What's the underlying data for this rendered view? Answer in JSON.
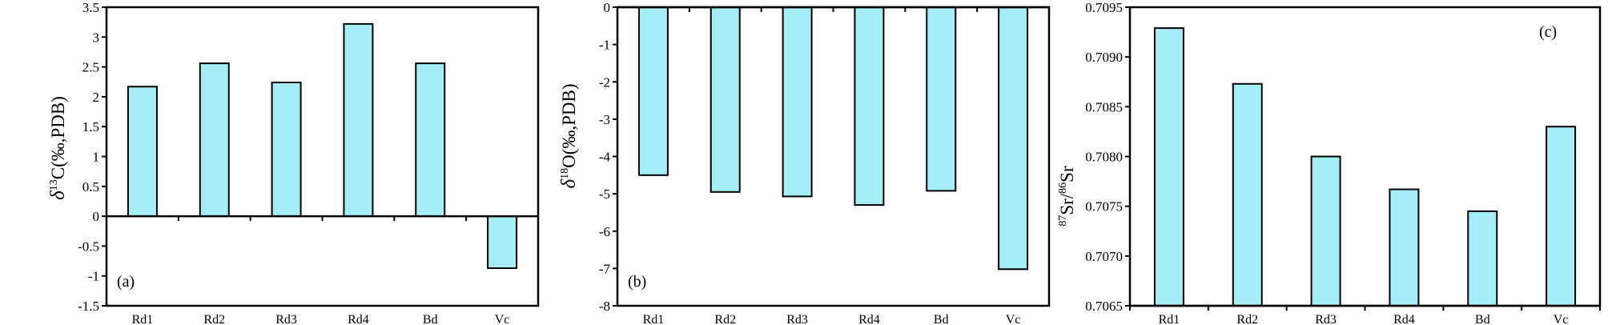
{
  "chart_data": [
    {
      "type": "bar",
      "panel_label": "(a)",
      "categories": [
        "Rd1",
        "Rd2",
        "Rd3",
        "Rd4",
        "Bd",
        "Vc"
      ],
      "values": [
        2.17,
        2.56,
        2.24,
        3.22,
        2.56,
        -0.87
      ],
      "ylabel": {
        "delta": "δ",
        "sup": "13",
        "rest": "C(‰,PDB)"
      },
      "ylim": [
        -1.5,
        3.5
      ],
      "yticks": [
        3.5,
        3,
        2.5,
        2,
        1.5,
        1,
        0.5,
        0,
        -0.5,
        -1,
        -1.5
      ],
      "ytick_labels": [
        "3.5",
        "3",
        "2.5",
        "2",
        "1.5",
        "1",
        "0.5",
        "0",
        "-0.5",
        "-1",
        "-1.5"
      ],
      "bar_color": "#a6eef5",
      "grid": false
    },
    {
      "type": "bar",
      "panel_label": "(b)",
      "categories": [
        "Rd1",
        "Rd2",
        "Rd3",
        "Rd4",
        "Bd",
        "Vc"
      ],
      "values": [
        -4.5,
        -4.95,
        -5.07,
        -5.3,
        -4.92,
        -7.02
      ],
      "ylabel": {
        "delta": "δ",
        "sup": "18",
        "rest": "O(‰,PDB)"
      },
      "ylim": [
        -8,
        0
      ],
      "yticks": [
        0,
        -1,
        -2,
        -3,
        -4,
        -5,
        -6,
        -7,
        -8
      ],
      "ytick_labels": [
        "0",
        "-1",
        "-2",
        "-3",
        "-4",
        "-5",
        "-6",
        "-7",
        "-8"
      ],
      "bar_color": "#a6eef5",
      "grid": false
    },
    {
      "type": "bar",
      "panel_label": "(c)",
      "categories": [
        "Rd1",
        "Rd2",
        "Rd3",
        "Rd4",
        "Bd",
        "Vc"
      ],
      "values": [
        0.70929,
        0.70873,
        0.708,
        0.70767,
        0.70745,
        0.7083
      ],
      "ylabel": {
        "sup1": "87",
        "mid": "Sr/",
        "sup2": "86",
        "rest": "Sr"
      },
      "ylim": [
        0.7065,
        0.7095
      ],
      "yticks": [
        0.7095,
        0.709,
        0.7085,
        0.708,
        0.7075,
        0.707,
        0.7065
      ],
      "ytick_labels": [
        "0.7095",
        "0.7090",
        "0.7085",
        "0.7080",
        "0.7075",
        "0.7070",
        "0.7065"
      ],
      "bar_color": "#a6eef5",
      "grid": false
    }
  ]
}
